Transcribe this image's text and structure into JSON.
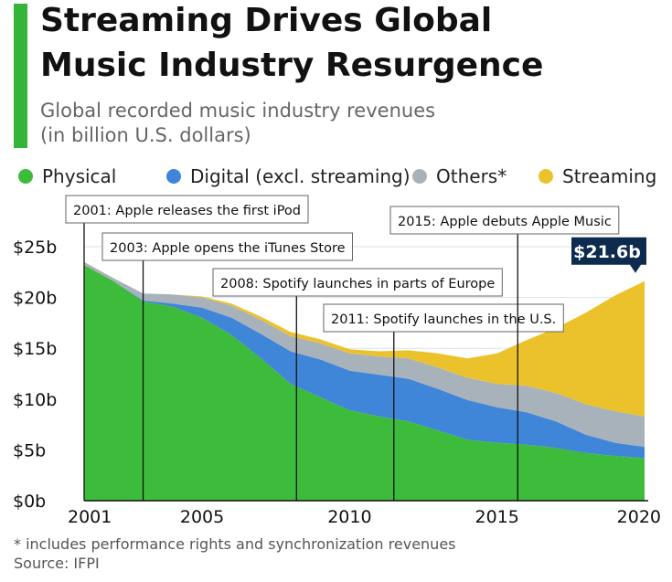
{
  "header": {
    "title_line1": "Streaming Drives Global",
    "title_line2": "Music Industry Resurgence",
    "subtitle_line1": "Global recorded music industry revenues",
    "subtitle_line2": "(in billion U.S. dollars)",
    "accent_color": "#34b53a"
  },
  "legend": [
    {
      "label": "Physical",
      "color": "#3dbb3b"
    },
    {
      "label": "Digital (excl. streaming)",
      "color": "#3f85d8"
    },
    {
      "label": "Others*",
      "color": "#a8b2bb"
    },
    {
      "label": "Streaming",
      "color": "#ecc22c"
    }
  ],
  "chart_data": {
    "type": "area",
    "stacked": true,
    "x": [
      2001,
      2002,
      2003,
      2004,
      2005,
      2006,
      2007,
      2008,
      2009,
      2010,
      2011,
      2012,
      2013,
      2014,
      2015,
      2016,
      2017,
      2018,
      2019,
      2020
    ],
    "series": [
      {
        "name": "Physical",
        "color": "#3dbb3b",
        "values": [
          23.2,
          21.6,
          19.6,
          19.1,
          18.0,
          16.3,
          14.0,
          11.5,
          10.2,
          8.9,
          8.3,
          7.8,
          6.9,
          6.0,
          5.7,
          5.5,
          5.2,
          4.7,
          4.4,
          4.2
        ]
      },
      {
        "name": "Digital (excl. streaming)",
        "color": "#3f85d8",
        "values": [
          0.0,
          0.0,
          0.1,
          0.3,
          1.0,
          1.7,
          2.4,
          3.2,
          3.7,
          3.9,
          4.1,
          4.2,
          4.1,
          3.9,
          3.5,
          3.2,
          2.6,
          1.8,
          1.3,
          1.1
        ]
      },
      {
        "name": "Others*",
        "color": "#a8b2bb",
        "values": [
          0.3,
          0.3,
          0.7,
          0.9,
          1.0,
          1.2,
          1.4,
          1.5,
          1.6,
          1.7,
          1.8,
          2.0,
          2.1,
          2.2,
          2.3,
          2.6,
          2.8,
          3.0,
          3.1,
          3.0
        ]
      },
      {
        "name": "Streaming",
        "color": "#ecc22c",
        "values": [
          0.0,
          0.0,
          0.0,
          0.0,
          0.1,
          0.2,
          0.3,
          0.4,
          0.4,
          0.4,
          0.5,
          0.8,
          1.4,
          1.9,
          3.0,
          4.5,
          6.4,
          9.0,
          11.4,
          13.3
        ]
      }
    ],
    "xticks": [
      2001,
      2005,
      2010,
      2015,
      2020
    ],
    "xtick_labels": [
      "2001",
      "2005",
      "2010",
      "2015",
      "2020"
    ],
    "yticks": [
      0,
      5,
      10,
      15,
      20,
      25
    ],
    "ytick_labels": [
      "$0b",
      "$5b",
      "$10b",
      "$15b",
      "$20b",
      "$25b"
    ],
    "ylim": [
      0,
      25
    ],
    "xlim": [
      2001,
      2020
    ],
    "grid": true,
    "legend_position": "top",
    "callout": {
      "year": 2020,
      "value": 21.6,
      "label": "$21.6b",
      "color": "#0d2b4e"
    },
    "annotations": [
      {
        "year": 2001,
        "label": "2001: Apple releases the first iPod"
      },
      {
        "year": 2003,
        "label": "2003: Apple opens the iTunes Store"
      },
      {
        "year": 2008.2,
        "label": "2008: Spotify launches in parts of Europe"
      },
      {
        "year": 2011.5,
        "label": "2011: Spotify launches in the U.S."
      },
      {
        "year": 2015.7,
        "label": "2015: Apple debuts Apple Music"
      }
    ]
  },
  "footer": {
    "footnote": "* includes performance rights and synchronization revenues",
    "source": "Source: IFPI"
  }
}
